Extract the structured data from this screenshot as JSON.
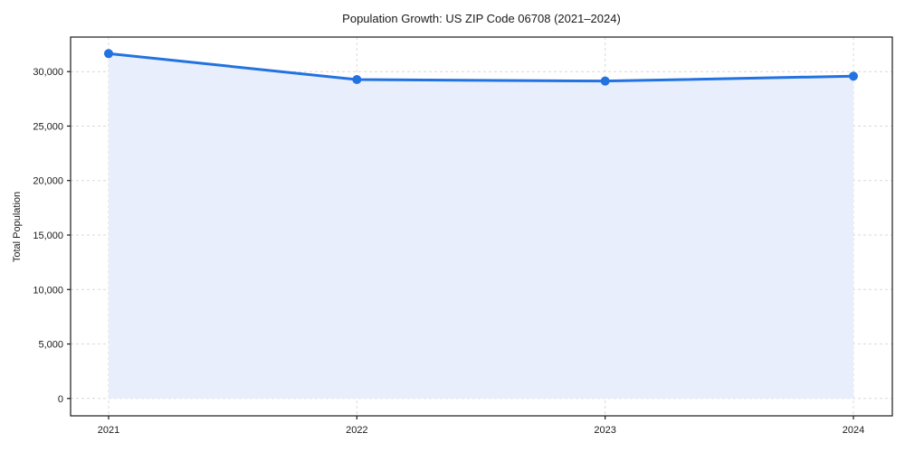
{
  "chart_data": {
    "type": "line",
    "title": "Population Growth: US ZIP Code 06708 (2021–2024)",
    "xlabel": "",
    "ylabel": "Total Population",
    "categories": [
      "2021",
      "2022",
      "2023",
      "2024"
    ],
    "x": [
      2021,
      2022,
      2023,
      2024
    ],
    "series": [
      {
        "name": "Total Population",
        "values": [
          31650,
          29270,
          29130,
          29580
        ]
      }
    ],
    "ylim": [
      0,
      33230
    ],
    "y_ticks": [
      0,
      5000,
      10000,
      15000,
      20000,
      25000,
      30000
    ],
    "y_tick_labels": [
      "0",
      "5,000",
      "10,000",
      "15,000",
      "20,000",
      "25,000",
      "30,000"
    ],
    "grid": true,
    "grid_style": "dashed",
    "legend_position": "none",
    "area_fill": true,
    "marker_style": "circle",
    "colors": {
      "line": "#2272e0",
      "marker": "#2272e0",
      "area": "#e8eefb",
      "grid": "#d9d9d9",
      "axis": "#1a1a1a",
      "text": "#1a1a1a",
      "background": "#ffffff"
    }
  }
}
